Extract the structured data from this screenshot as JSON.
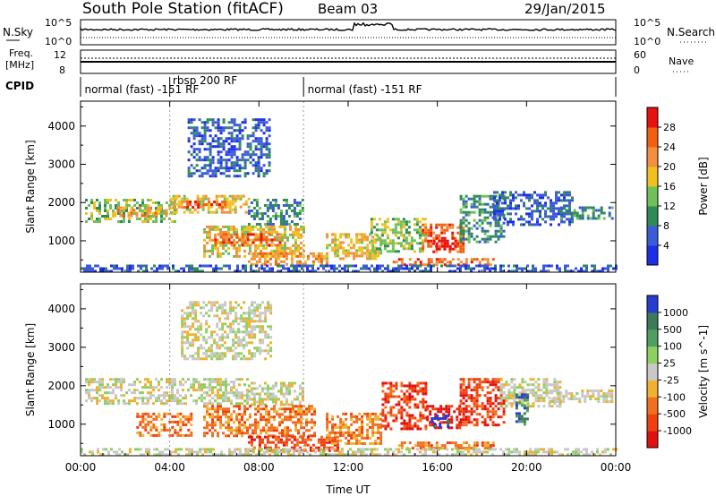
{
  "header": {
    "title": "South Pole Station (fitACF)",
    "beam": "Beam 03",
    "date": "29/Jan/2015"
  },
  "strips": {
    "nsky_label": "N.Sky",
    "nsearch_label": "N.Search",
    "nsky_ticks": [
      "10^5",
      "10^0"
    ],
    "nsearch_ticks": [
      "10^5",
      "10^0"
    ],
    "freq_label_1": "Freq.",
    "freq_label_2": "[MHz]",
    "freq_ticks": [
      "12",
      "8"
    ],
    "nave_label": "Nave",
    "nave_ticks": [
      "60",
      "0"
    ],
    "cpid_label": "CPID"
  },
  "cpid_segments": [
    {
      "start_hour": 0,
      "end_hour": 4,
      "label": "normal (fast) -151 RF",
      "label_hour": 0.1
    },
    {
      "start_hour": 4,
      "end_hour": 10,
      "label": "rbsp 200 RF",
      "label_hour": 4.05
    },
    {
      "start_hour": 10,
      "end_hour": 24,
      "label": "normal (fast) -151 RF",
      "label_hour": 10.1
    }
  ],
  "chart_data": [
    {
      "type": "heatmap",
      "title": "",
      "xlabel": "Time UT",
      "ylabel": "Slant Range [km]",
      "xlim": [
        0,
        24
      ],
      "ylim": [
        180,
        4650
      ],
      "x_ticks": [
        "00:00",
        "04:00",
        "08:00",
        "12:00",
        "16:00",
        "20:00",
        "00:00"
      ],
      "x_tick_hours": [
        0,
        4,
        8,
        12,
        16,
        20,
        24
      ],
      "y_ticks": [
        1000,
        2000,
        3000,
        4000
      ],
      "colorbar": {
        "label": "Power [dB]",
        "ticks": [
          "4",
          "8",
          "12",
          "16",
          "20",
          "24",
          "28"
        ],
        "colors": [
          "#1e2ee6",
          "#3b5bd6",
          "#2e8b57",
          "#6fc05b",
          "#f0c020",
          "#f09040",
          "#f06010",
          "#e81010"
        ]
      },
      "regions": [
        {
          "t0": 0.2,
          "t1": 4.2,
          "r0": 1500,
          "r1": 2100,
          "level": 3
        },
        {
          "t0": 1.5,
          "t1": 3.8,
          "r0": 1650,
          "r1": 1900,
          "level": 5
        },
        {
          "t0": 4.0,
          "t1": 7.5,
          "r0": 1750,
          "r1": 2200,
          "level": 4
        },
        {
          "t0": 4.5,
          "t1": 6.5,
          "r0": 1850,
          "r1": 2050,
          "level": 6
        },
        {
          "t0": 7.5,
          "t1": 10.0,
          "r0": 1400,
          "r1": 2100,
          "level": 2
        },
        {
          "t0": 4.8,
          "t1": 8.5,
          "r0": 2700,
          "r1": 4200,
          "level": 1
        },
        {
          "t0": 5.5,
          "t1": 10.0,
          "r0": 600,
          "r1": 1400,
          "level": 4
        },
        {
          "t0": 6.0,
          "t1": 9.0,
          "r0": 900,
          "r1": 1200,
          "level": 6
        },
        {
          "t0": 7.5,
          "t1": 11.0,
          "r0": 350,
          "r1": 700,
          "level": 5
        },
        {
          "t0": 11.0,
          "t1": 13.5,
          "r0": 500,
          "r1": 1200,
          "level": 4
        },
        {
          "t0": 13.0,
          "t1": 15.5,
          "r0": 700,
          "r1": 1600,
          "level": 3
        },
        {
          "t0": 15.3,
          "t1": 17.2,
          "r0": 700,
          "r1": 1450,
          "level": 6
        },
        {
          "t0": 15.8,
          "t1": 16.8,
          "r0": 800,
          "r1": 1100,
          "level": 7
        },
        {
          "t0": 14.0,
          "t1": 18.5,
          "r0": 350,
          "r1": 550,
          "level": 6
        },
        {
          "t0": 17.0,
          "t1": 19.0,
          "r0": 1000,
          "r1": 2200,
          "level": 2
        },
        {
          "t0": 18.5,
          "t1": 22.0,
          "r0": 1400,
          "r1": 2300,
          "level": 1
        },
        {
          "t0": 21.5,
          "t1": 23.8,
          "r0": 1550,
          "r1": 1900,
          "level": 2
        },
        {
          "t0": 0.0,
          "t1": 24.0,
          "r0": 180,
          "r1": 380,
          "level": 1
        }
      ]
    },
    {
      "type": "heatmap",
      "title": "",
      "xlabel": "Time UT",
      "ylabel": "Slant Range [km]",
      "xlim": [
        0,
        24
      ],
      "ylim": [
        180,
        4650
      ],
      "x_ticks": [
        "00:00",
        "04:00",
        "08:00",
        "12:00",
        "16:00",
        "20:00",
        "00:00"
      ],
      "x_tick_hours": [
        0,
        4,
        8,
        12,
        16,
        20,
        24
      ],
      "y_ticks": [
        1000,
        2000,
        3000,
        4000
      ],
      "colorbar": {
        "label": "Velocity [m s^-1]",
        "ticks": [
          "1000",
          "500",
          "100",
          "25",
          "-25",
          "-100",
          "-500",
          "-1000"
        ],
        "colors": [
          "#2a3bd0",
          "#3c7a5a",
          "#4fa060",
          "#8ed060",
          "#c8c8c8",
          "#f0b030",
          "#f07020",
          "#f04010",
          "#e01010"
        ]
      },
      "regions": [
        {
          "t0": 0.2,
          "t1": 7.5,
          "r0": 1550,
          "r1": 2200,
          "level": 4
        },
        {
          "t0": 7.5,
          "t1": 10.0,
          "r0": 1500,
          "r1": 2100,
          "level": 4
        },
        {
          "t0": 4.5,
          "t1": 8.5,
          "r0": 2700,
          "r1": 4200,
          "level": 4
        },
        {
          "t0": 2.5,
          "t1": 5.0,
          "r0": 700,
          "r1": 1300,
          "level": 6
        },
        {
          "t0": 5.5,
          "t1": 10.5,
          "r0": 700,
          "r1": 1500,
          "level": 6
        },
        {
          "t0": 7.5,
          "t1": 11.5,
          "r0": 350,
          "r1": 700,
          "level": 7
        },
        {
          "t0": 11.0,
          "t1": 13.5,
          "r0": 500,
          "r1": 1300,
          "level": 6
        },
        {
          "t0": 13.5,
          "t1": 15.5,
          "r0": 900,
          "r1": 2100,
          "level": 7
        },
        {
          "t0": 15.5,
          "t1": 17.0,
          "r0": 900,
          "r1": 1500,
          "level": 8
        },
        {
          "t0": 15.7,
          "t1": 16.5,
          "r0": 950,
          "r1": 1250,
          "level": 0
        },
        {
          "t0": 14.0,
          "t1": 18.5,
          "r0": 350,
          "r1": 550,
          "level": 6
        },
        {
          "t0": 17.0,
          "t1": 19.0,
          "r0": 1000,
          "r1": 2200,
          "level": 7
        },
        {
          "t0": 18.8,
          "t1": 21.5,
          "r0": 1500,
          "r1": 2200,
          "level": 4
        },
        {
          "t0": 21.0,
          "t1": 23.8,
          "r0": 1600,
          "r1": 1900,
          "level": 4
        },
        {
          "t0": 19.5,
          "t1": 20.0,
          "r0": 1000,
          "r1": 1800,
          "level": 1
        },
        {
          "t0": 0.0,
          "t1": 24.0,
          "r0": 180,
          "r1": 380,
          "level": 4
        }
      ]
    }
  ]
}
